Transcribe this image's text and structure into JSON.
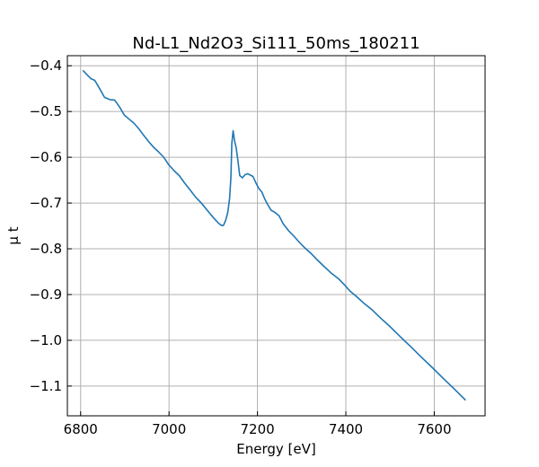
{
  "chart_data": {
    "type": "line",
    "title": "Nd-L1_Nd2O3_Si111_50ms_180211",
    "xlabel": "Energy [eV]",
    "ylabel": "μ t",
    "xlim": [
      6770,
      7715
    ],
    "ylim": [
      -1.165,
      -0.378
    ],
    "grid": true,
    "line_color": "#1f77b4",
    "xticks": [
      6800,
      7000,
      7200,
      7400,
      7600
    ],
    "xtick_labels": [
      "6800",
      "7000",
      "7200",
      "7400",
      "7600"
    ],
    "yticks": [
      -0.4,
      -0.5,
      -0.6,
      -0.7,
      -0.8,
      -0.9,
      -1.0,
      -1.1
    ],
    "ytick_labels": [
      "−0.4",
      "−0.5",
      "−0.6",
      "−0.7",
      "−0.8",
      "−0.9",
      "−1.0",
      "−1.1"
    ],
    "series": [
      {
        "x": [
          6806,
          6815,
          6823,
          6832,
          6843,
          6854,
          6866,
          6877,
          6888,
          6899,
          6910,
          6920,
          6931,
          6941,
          6954,
          6966,
          6976,
          6988,
          6999,
          7011,
          7023,
          7035,
          7048,
          7060,
          7073,
          7085,
          7096,
          7106,
          7113,
          7119,
          7123,
          7128,
          7133,
          7137,
          7140,
          7142,
          7145,
          7148,
          7152,
          7156,
          7160,
          7166,
          7172,
          7178,
          7184,
          7190,
          7197,
          7203,
          7210,
          7216,
          7223,
          7231,
          7239,
          7249,
          7258,
          7270,
          7282,
          7294,
          7306,
          7320,
          7334,
          7350,
          7368,
          7384,
          7396,
          7410,
          7426,
          7442,
          7460,
          7478,
          7500,
          7524,
          7548,
          7570,
          7596,
          7620,
          7646,
          7670
        ],
        "y": [
          -0.411,
          -0.42,
          -0.428,
          -0.432,
          -0.45,
          -0.469,
          -0.474,
          -0.475,
          -0.49,
          -0.508,
          -0.517,
          -0.525,
          -0.537,
          -0.55,
          -0.566,
          -0.579,
          -0.588,
          -0.6,
          -0.616,
          -0.629,
          -0.64,
          -0.656,
          -0.672,
          -0.687,
          -0.7,
          -0.714,
          -0.727,
          -0.738,
          -0.745,
          -0.749,
          -0.749,
          -0.738,
          -0.72,
          -0.69,
          -0.643,
          -0.57,
          -0.542,
          -0.563,
          -0.58,
          -0.609,
          -0.64,
          -0.645,
          -0.638,
          -0.636,
          -0.639,
          -0.642,
          -0.657,
          -0.668,
          -0.676,
          -0.69,
          -0.703,
          -0.716,
          -0.72,
          -0.728,
          -0.745,
          -0.76,
          -0.772,
          -0.785,
          -0.797,
          -0.809,
          -0.823,
          -0.838,
          -0.854,
          -0.866,
          -0.878,
          -0.893,
          -0.906,
          -0.92,
          -0.934,
          -0.951,
          -0.97,
          -0.993,
          -1.015,
          -1.036,
          -1.06,
          -1.083,
          -1.107,
          -1.13
        ]
      }
    ]
  }
}
